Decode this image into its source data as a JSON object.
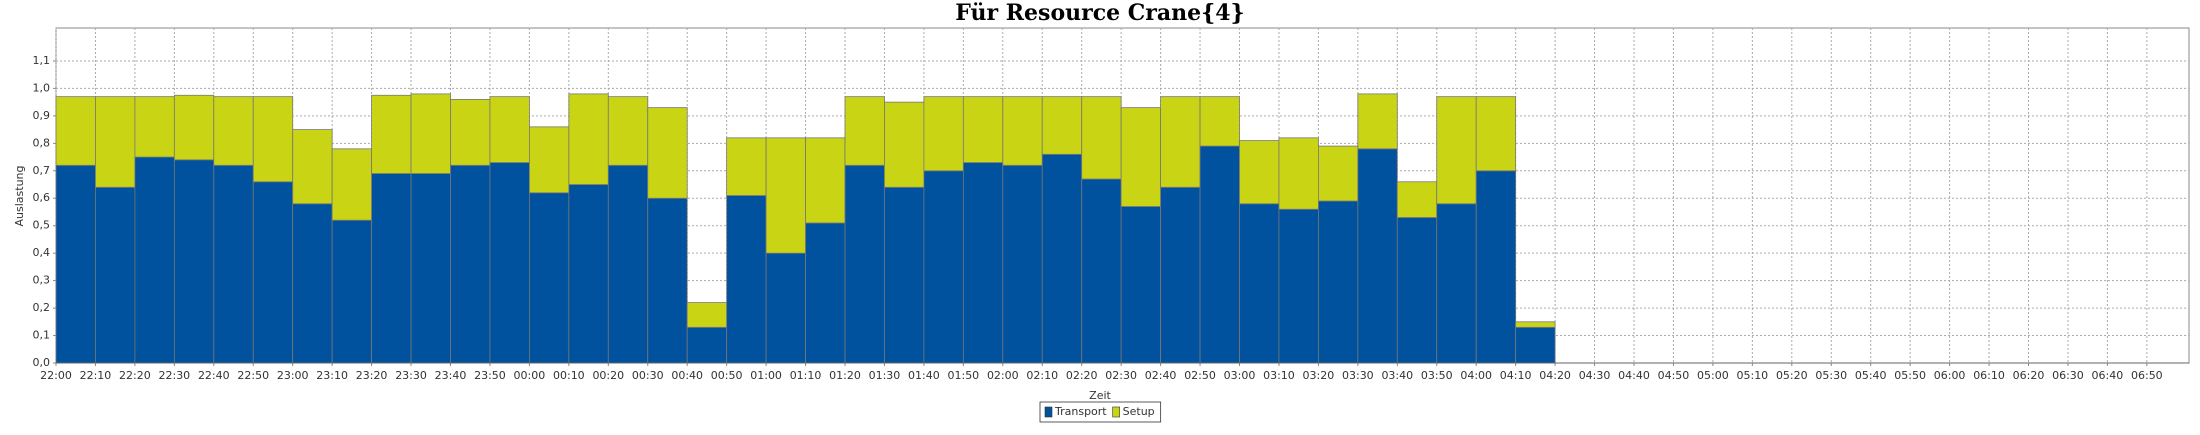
{
  "chart_data": {
    "type": "stacked_bar",
    "title": "Für Resource Crane{4}",
    "ylabel": "Auslastung",
    "xlabel": "Zeit",
    "categories": [
      "22:00",
      "22:10",
      "22:20",
      "22:30",
      "22:40",
      "22:50",
      "23:00",
      "23:10",
      "23:20",
      "23:30",
      "23:40",
      "23:50",
      "00:00",
      "00:10",
      "00:20",
      "00:30",
      "00:40",
      "00:50",
      "01:00",
      "01:10",
      "01:20",
      "01:30",
      "01:40",
      "01:50",
      "02:00",
      "02:10",
      "02:20",
      "02:30",
      "02:40",
      "02:50",
      "03:00",
      "03:10",
      "03:20",
      "03:30",
      "03:40",
      "03:50",
      "04:00",
      "04:10",
      "04:20",
      "04:30",
      "04:40",
      "04:50",
      "05:00",
      "05:10",
      "05:20",
      "05:30",
      "05:40",
      "05:50",
      "06:00",
      "06:10",
      "06:20",
      "06:30",
      "06:40",
      "06:50"
    ],
    "series": [
      {
        "name": "Transport",
        "color": "#00519e",
        "values": [
          0.72,
          0.64,
          0.75,
          0.74,
          0.72,
          0.66,
          0.58,
          0.52,
          0.69,
          0.69,
          0.72,
          0.73,
          0.62,
          0.65,
          0.72,
          0.6,
          0.13,
          0.61,
          0.4,
          0.51,
          0.72,
          0.64,
          0.7,
          0.73,
          0.72,
          0.76,
          0.67,
          0.57,
          0.64,
          0.79,
          0.58,
          0.56,
          0.59,
          0.78,
          0.53,
          0.58,
          0.7,
          0.13,
          null,
          null,
          null,
          null,
          null,
          null,
          null,
          null,
          null,
          null,
          null,
          null,
          null,
          null,
          null,
          null
        ]
      },
      {
        "name": "Setup",
        "color": "#c8d414",
        "values": [
          0.25,
          0.33,
          0.22,
          0.235,
          0.25,
          0.31,
          0.27,
          0.26,
          0.285,
          0.29,
          0.24,
          0.24,
          0.24,
          0.33,
          0.25,
          0.33,
          0.09,
          0.21,
          0.42,
          0.31,
          0.25,
          0.31,
          0.27,
          0.24,
          0.25,
          0.21,
          0.3,
          0.36,
          0.33,
          0.18,
          0.23,
          0.26,
          0.2,
          0.2,
          0.13,
          0.39,
          0.27,
          0.02,
          null,
          null,
          null,
          null,
          null,
          null,
          null,
          null,
          null,
          null,
          null,
          null,
          null,
          null,
          null,
          null
        ]
      }
    ],
    "ylim": [
      0,
      1.22
    ],
    "yticks": [
      {
        "value": 0,
        "label": "0,0"
      },
      {
        "value": 0.1,
        "label": "0,1"
      },
      {
        "value": 0.2,
        "label": "0,2"
      },
      {
        "value": 0.3,
        "label": "0,3"
      },
      {
        "value": 0.4,
        "label": "0,4"
      },
      {
        "value": 0.5,
        "label": "0,5"
      },
      {
        "value": 0.6,
        "label": "0,6"
      },
      {
        "value": 0.7,
        "label": "0,7"
      },
      {
        "value": 0.8,
        "label": "0,8"
      },
      {
        "value": 0.9,
        "label": "0,9"
      },
      {
        "value": 1.0,
        "label": "1,0"
      },
      {
        "value": 1.1,
        "label": "1,1"
      }
    ],
    "grid": true,
    "legend": "bottom"
  }
}
